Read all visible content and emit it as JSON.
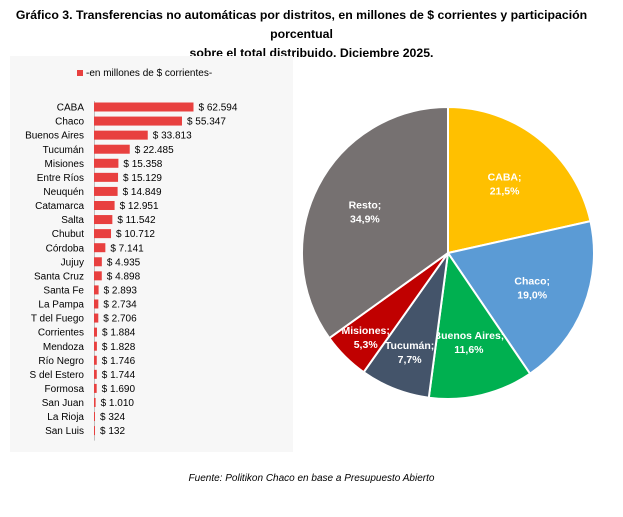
{
  "title_line1": "Gráfico 3. Transferencias no automáticas por distritos, en millones de $ corrientes y participación porcentual",
  "title_line2": "sobre el total distribuido. Diciembre 2025.",
  "source": "Fuente: Politikon Chaco en base a Presupuesto Abierto",
  "colors": {
    "bar": "#e8403f",
    "caba": "#ffc000",
    "chaco": "#5b9bd5",
    "buenos_aires": "#00b050",
    "tucuman": "#44546a",
    "misiones": "#c00000",
    "resto": "#767171"
  },
  "chart_data": [
    {
      "type": "bar",
      "orientation": "horizontal",
      "legend": "-en millones de $ corrientes-",
      "categories": [
        "CABA",
        "Chaco",
        "Buenos Aires",
        "Tucumán",
        "Misiones",
        "Entre Ríos",
        "Neuquén",
        "Catamarca",
        "Salta",
        "Chubut",
        "Córdoba",
        "Jujuy",
        "Santa Cruz",
        "Santa Fe",
        "La Pampa",
        "T del Fuego",
        "Corrientes",
        "Mendoza",
        "Río Negro",
        "S del Estero",
        "Formosa",
        "San Juan",
        "La Rioja",
        "San Luis"
      ],
      "values": [
        62594,
        55347,
        33813,
        22485,
        15358,
        15129,
        14849,
        12951,
        11542,
        10712,
        7141,
        4935,
        4898,
        2893,
        2734,
        2706,
        1884,
        1828,
        1746,
        1744,
        1690,
        1010,
        324,
        132
      ],
      "value_labels": [
        "$ 62.594",
        "$ 55.347",
        "$ 33.813",
        "$ 22.485",
        "$ 15.358",
        "$ 15.129",
        "$ 14.849",
        "$ 12.951",
        "$ 11.542",
        "$ 10.712",
        "$ 7.141",
        "$ 4.935",
        "$ 4.898",
        "$ 2.893",
        "$ 2.734",
        "$ 2.706",
        "$ 1.884",
        "$ 1.828",
        "$ 1.746",
        "$ 1.744",
        "$ 1.690",
        "$ 1.010",
        "$ 324",
        "$ 132"
      ]
    },
    {
      "type": "pie",
      "slices": [
        {
          "label": "CABA;",
          "pct_label": "21,5%",
          "value": 21.5,
          "color_key": "caba"
        },
        {
          "label": "Chaco;",
          "pct_label": "19,0%",
          "value": 19.0,
          "color_key": "chaco"
        },
        {
          "label": "Buenos Aires;",
          "pct_label": "11,6%",
          "value": 11.6,
          "color_key": "buenos_aires"
        },
        {
          "label": "Tucumán;",
          "pct_label": "7,7%",
          "value": 7.7,
          "color_key": "tucuman"
        },
        {
          "label": "Misiones;",
          "pct_label": "5,3%",
          "value": 5.3,
          "color_key": "misiones"
        },
        {
          "label": "Resto;",
          "pct_label": "34,9%",
          "value": 34.9,
          "color_key": "resto"
        }
      ]
    }
  ]
}
